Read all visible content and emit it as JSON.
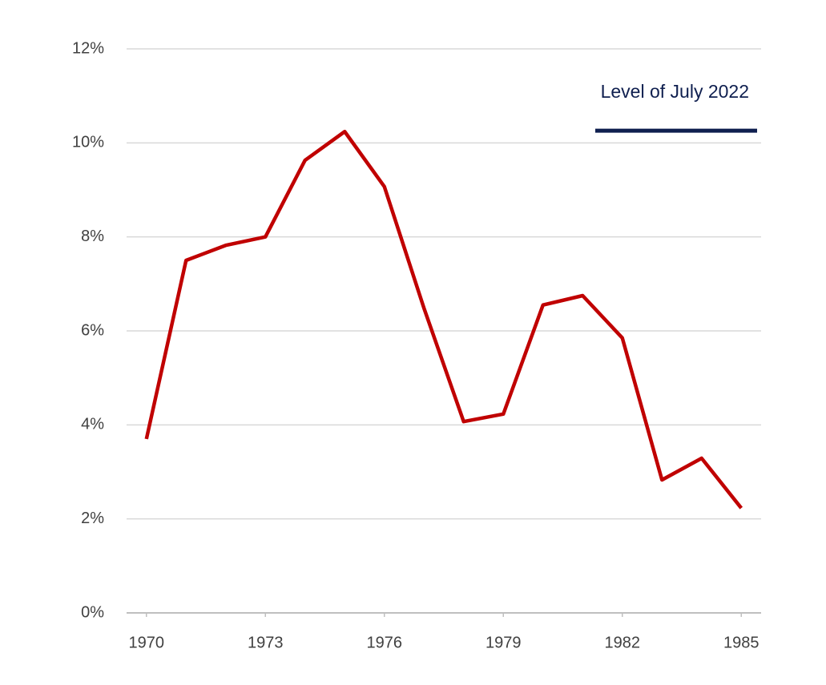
{
  "chart_data": {
    "type": "line",
    "x": [
      1970,
      1971,
      1972,
      1973,
      1974,
      1975,
      1976,
      1977,
      1978,
      1979,
      1980,
      1981,
      1982,
      1983,
      1984,
      1985
    ],
    "series": [
      {
        "color": "#c00000",
        "values": [
          3.7,
          7.5,
          7.82,
          8.0,
          9.63,
          10.24,
          9.07,
          6.48,
          4.07,
          4.23,
          6.55,
          6.75,
          5.85,
          2.83,
          3.29,
          2.23
        ]
      }
    ],
    "reference_line": {
      "label": "Level of July 2022",
      "value": 10.26,
      "color": "#0f1f4f"
    },
    "xlim": [
      1969.5,
      1985.5
    ],
    "xticks": [
      1970,
      1973,
      1976,
      1979,
      1982,
      1985
    ],
    "ylim": [
      0,
      12
    ],
    "yticks": [
      {
        "value": 0,
        "label": "0%"
      },
      {
        "value": 2,
        "label": "2%"
      },
      {
        "value": 4,
        "label": "4%"
      },
      {
        "value": 6,
        "label": "6%"
      },
      {
        "value": 8,
        "label": "8%"
      },
      {
        "value": 10,
        "label": "10%"
      },
      {
        "value": 12,
        "label": "12%"
      }
    ],
    "grid": true
  }
}
